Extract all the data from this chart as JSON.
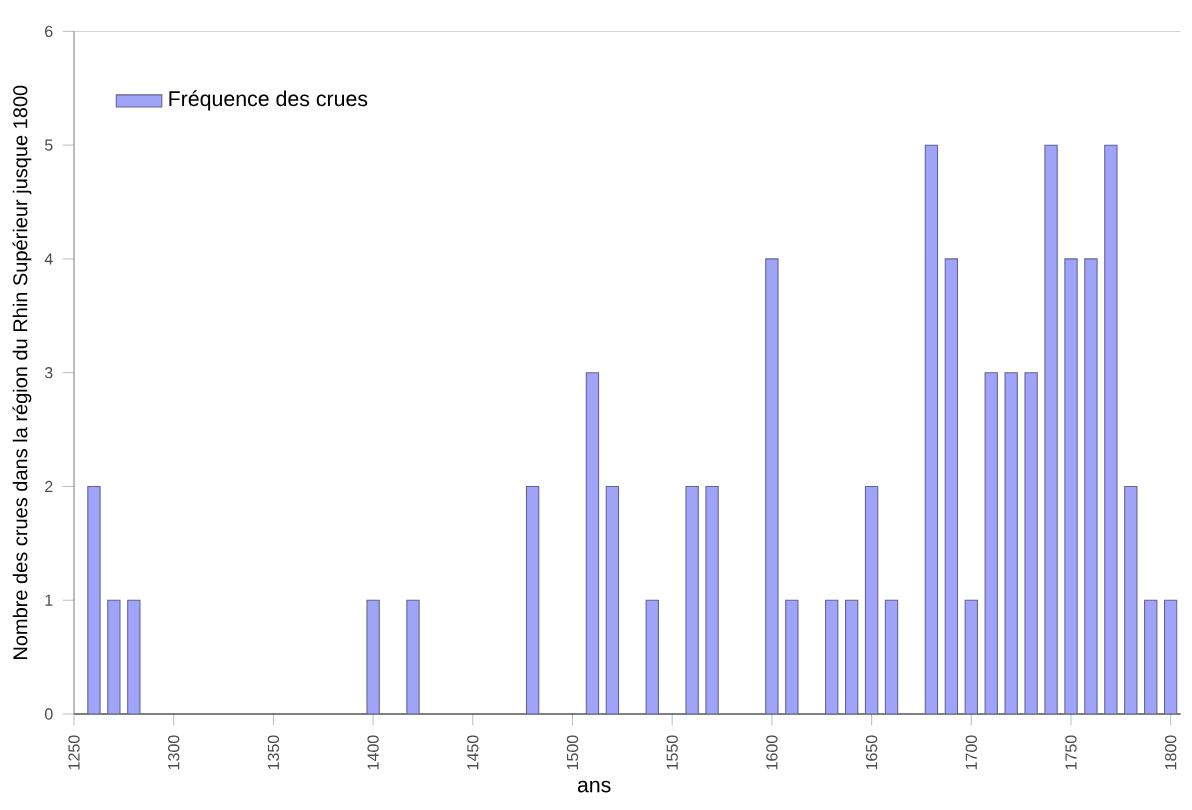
{
  "chart_data": {
    "type": "bar",
    "xlabel": "ans",
    "ylabel": "Nombre des crues dans la région du Rhin Supérieur jusque 1800",
    "x": [
      1260,
      1270,
      1280,
      1400,
      1420,
      1480,
      1510,
      1520,
      1540,
      1560,
      1570,
      1600,
      1610,
      1630,
      1640,
      1650,
      1660,
      1680,
      1690,
      1700,
      1710,
      1720,
      1730,
      1740,
      1750,
      1760,
      1770,
      1780,
      1790,
      1800
    ],
    "series": [
      {
        "name": "Fréquence des crues",
        "color": "#a0a4f8",
        "values": [
          2,
          1,
          1,
          1,
          1,
          2,
          3,
          2,
          1,
          2,
          2,
          4,
          1,
          1,
          1,
          2,
          1,
          5,
          4,
          1,
          3,
          3,
          3,
          5,
          4,
          4,
          5,
          2,
          1,
          1
        ]
      }
    ],
    "xlim": [
      1250,
      1805
    ],
    "ylim": [
      0,
      6
    ],
    "xticks": [
      1250,
      1300,
      1350,
      1400,
      1450,
      1500,
      1550,
      1600,
      1650,
      1700,
      1750,
      1800
    ],
    "yticks": [
      0,
      1,
      2,
      3,
      4,
      5,
      6
    ],
    "grid": false,
    "legend": "top left"
  }
}
